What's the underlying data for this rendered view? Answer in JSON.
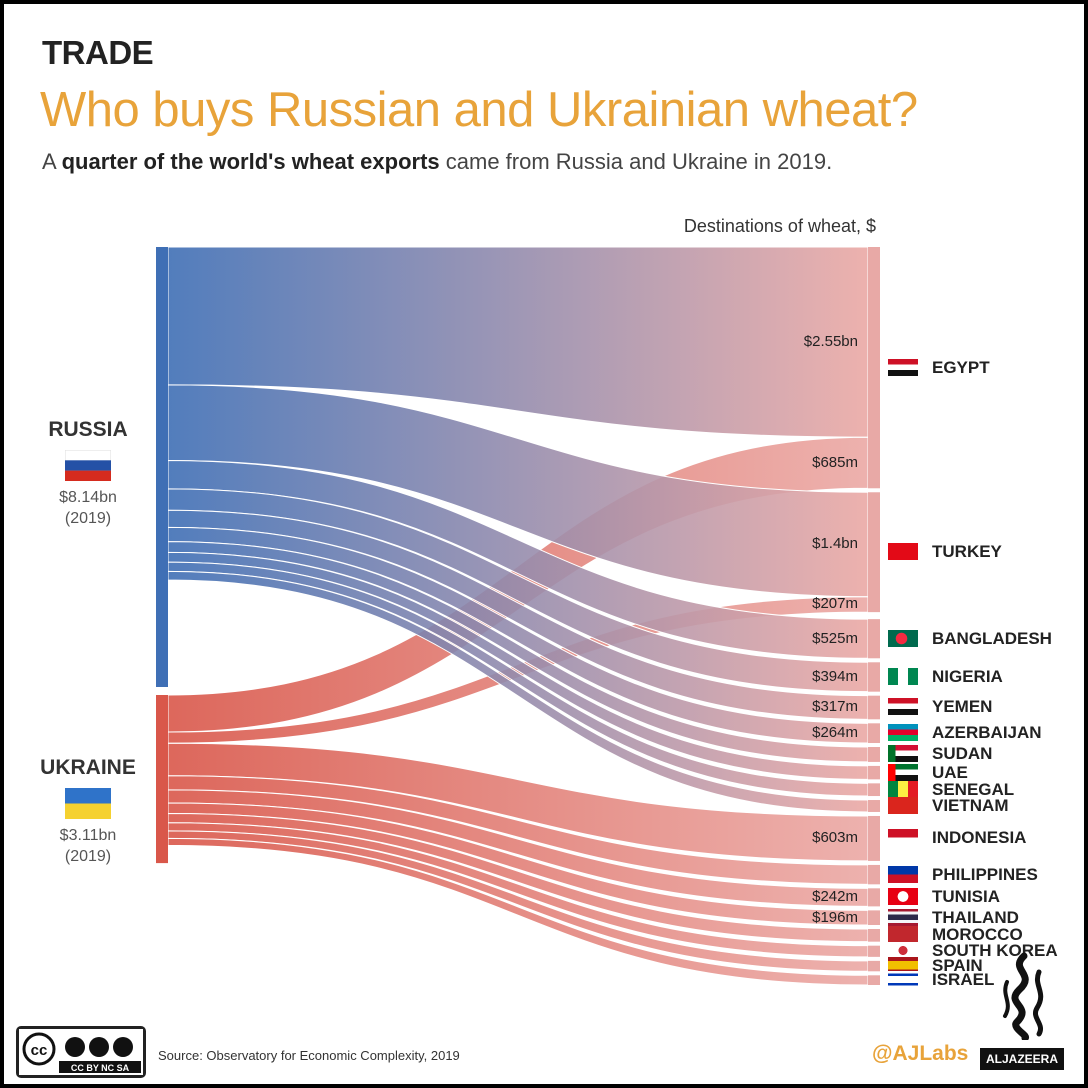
{
  "header": {
    "kicker": "TRADE",
    "title": "Who buys Russian and Ukrainian wheat?",
    "subtitle_bold": "quarter of the world's wheat exports",
    "subtitle_pre": "A ",
    "subtitle_post": " came from Russia and Ukraine in 2019."
  },
  "chart_data": {
    "type": "sankey",
    "heading": "Destinations of wheat, $",
    "sources": [
      {
        "name": "RUSSIA",
        "value_label": "$8.14bn",
        "year_label": "(2019)",
        "value": 8.14,
        "color": "#3f6fb5"
      },
      {
        "name": "UKRAINE",
        "value_label": "$3.11bn",
        "year_label": "(2019)",
        "value": 3.11,
        "color": "#d9574a"
      }
    ],
    "destinations": [
      {
        "name": "EGYPT",
        "icon": "flag-egypt-icon",
        "flows": [
          {
            "from": "RUSSIA",
            "value": 2.55,
            "label": "$2.55bn"
          },
          {
            "from": "UKRAINE",
            "value": 0.685,
            "label": "$685m"
          }
        ]
      },
      {
        "name": "TURKEY",
        "icon": "flag-turkey-icon",
        "flows": [
          {
            "from": "RUSSIA",
            "value": 1.4,
            "label": "$1.4bn"
          },
          {
            "from": "UKRAINE",
            "value": 0.207,
            "label": "$207m"
          }
        ]
      },
      {
        "name": "BANGLADESH",
        "icon": "flag-bangladesh-icon",
        "flows": [
          {
            "from": "RUSSIA",
            "value": 0.525,
            "label": "$525m"
          }
        ]
      },
      {
        "name": "NIGERIA",
        "icon": "flag-nigeria-icon",
        "flows": [
          {
            "from": "RUSSIA",
            "value": 0.394,
            "label": "$394m"
          }
        ]
      },
      {
        "name": "YEMEN",
        "icon": "flag-yemen-icon",
        "flows": [
          {
            "from": "RUSSIA",
            "value": 0.317,
            "label": "$317m"
          }
        ]
      },
      {
        "name": "AZERBAIJAN",
        "icon": "flag-azerbaijan-icon",
        "flows": [
          {
            "from": "RUSSIA",
            "value": 0.264,
            "label": "$264m"
          }
        ]
      },
      {
        "name": "SUDAN",
        "icon": "flag-sudan-icon",
        "flows": [
          {
            "from": "RUSSIA",
            "value": 0.2,
            "label": ""
          }
        ]
      },
      {
        "name": "UAE",
        "icon": "flag-uae-icon",
        "flows": [
          {
            "from": "RUSSIA",
            "value": 0.18,
            "label": ""
          }
        ]
      },
      {
        "name": "SENEGAL",
        "icon": "flag-senegal-icon",
        "flows": [
          {
            "from": "RUSSIA",
            "value": 0.17,
            "label": ""
          }
        ]
      },
      {
        "name": "VIETNAM",
        "icon": "flag-vietnam-icon",
        "flows": [
          {
            "from": "RUSSIA",
            "value": 0.16,
            "label": ""
          }
        ]
      },
      {
        "name": "INDONESIA",
        "icon": "flag-indonesia-icon",
        "flows": [
          {
            "from": "UKRAINE",
            "value": 0.603,
            "label": "$603m"
          }
        ]
      },
      {
        "name": "PHILIPPINES",
        "icon": "flag-philippines-icon",
        "flows": [
          {
            "from": "UKRAINE",
            "value": 0.26,
            "label": ""
          }
        ]
      },
      {
        "name": "TUNISIA",
        "icon": "flag-tunisia-icon",
        "flows": [
          {
            "from": "UKRAINE",
            "value": 0.242,
            "label": "$242m"
          }
        ]
      },
      {
        "name": "THAILAND",
        "icon": "flag-thailand-icon",
        "flows": [
          {
            "from": "UKRAINE",
            "value": 0.196,
            "label": "$196m"
          }
        ]
      },
      {
        "name": "MOROCCO",
        "icon": "flag-morocco-icon",
        "flows": [
          {
            "from": "UKRAINE",
            "value": 0.17,
            "label": ""
          }
        ]
      },
      {
        "name": "SOUTH KOREA",
        "icon": "flag-south-korea-icon",
        "flows": [
          {
            "from": "UKRAINE",
            "value": 0.15,
            "label": ""
          }
        ]
      },
      {
        "name": "SPAIN",
        "icon": "flag-spain-icon",
        "flows": [
          {
            "from": "UKRAINE",
            "value": 0.14,
            "label": ""
          }
        ]
      },
      {
        "name": "ISRAEL",
        "icon": "flag-israel-icon",
        "flows": [
          {
            "from": "UKRAINE",
            "value": 0.13,
            "label": ""
          }
        ]
      }
    ]
  },
  "footer": {
    "source": "Source: Observatory for Economic Complexity, 2019",
    "credit": "@AJLabs",
    "brand": "ALJAZEERA",
    "license": "CC BY NC SA"
  },
  "colors": {
    "accent": "#e8a33a",
    "russia": "#3f6fb5",
    "ukraine": "#d9574a",
    "destination": "#e8a9a6"
  }
}
